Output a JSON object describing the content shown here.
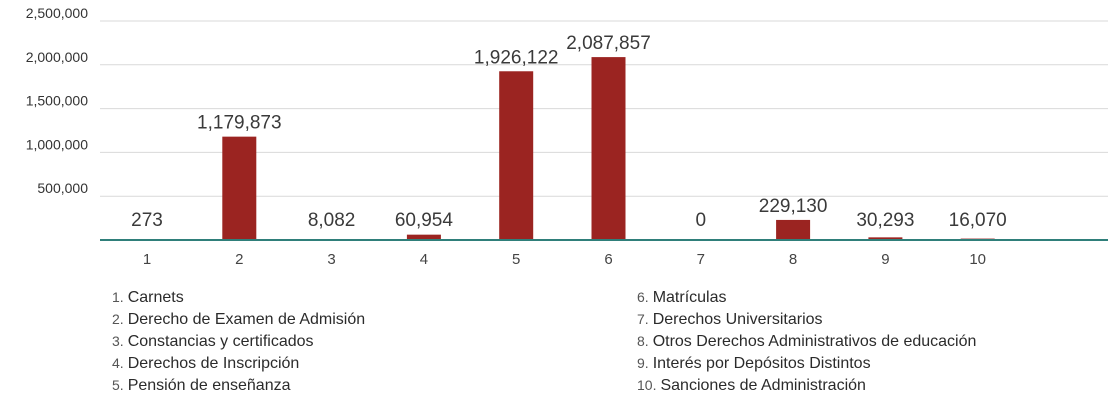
{
  "chart_data": {
    "type": "bar",
    "categories": [
      "1",
      "2",
      "3",
      "4",
      "5",
      "6",
      "7",
      "8",
      "9",
      "10"
    ],
    "values": [
      273,
      1179873,
      8082,
      60954,
      1926122,
      2087857,
      0,
      229130,
      30293,
      16070
    ],
    "data_labels": [
      "273",
      "1,179,873",
      "8,082",
      "60,954",
      "1,926,122",
      "2,087,857",
      "0",
      "229,130",
      "30,293",
      "16,070"
    ],
    "y_tick_labels": [
      "500,000",
      "1,000,000",
      "1,500,000",
      "2,000,000",
      "2,500,000"
    ],
    "ylim": [
      0,
      2500000
    ],
    "grid": true,
    "bar_color": "#9b2421",
    "axis_color": "#2f7f7a",
    "grid_color": "#d9d9d9"
  },
  "legend": {
    "left": [
      {
        "num": "1.",
        "label": "Carnets"
      },
      {
        "num": "2.",
        "label": "Derecho de Examen de Admisión"
      },
      {
        "num": "3.",
        "label": "Constancias y certificados"
      },
      {
        "num": "4.",
        "label": "Derechos de Inscripción"
      },
      {
        "num": "5.",
        "label": "Pensión de enseñanza"
      }
    ],
    "right": [
      {
        "num": "6.",
        "label": "Matrículas"
      },
      {
        "num": "7.",
        "label": "Derechos Universitarios"
      },
      {
        "num": "8.",
        "label": "Otros Derechos Administrativos de educación"
      },
      {
        "num": "9.",
        "label": "Interés por Depósitos Distintos"
      },
      {
        "num": "10.",
        "label": "Sanciones de Administración"
      }
    ]
  }
}
